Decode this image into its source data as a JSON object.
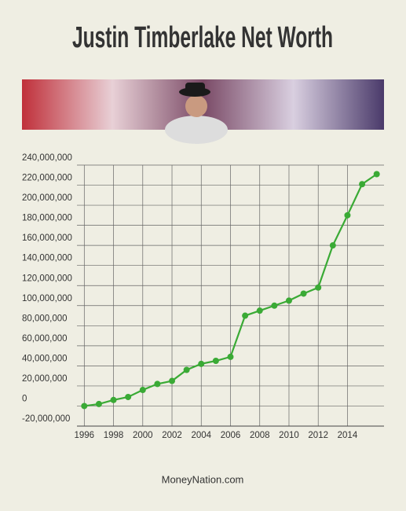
{
  "chart_data": {
    "type": "line",
    "title": "Justin Timberlake Net Worth",
    "source": "MoneyNation.com",
    "x": [
      1996,
      1997,
      1998,
      1999,
      2000,
      2001,
      2002,
      2003,
      2004,
      2005,
      2006,
      2007,
      2008,
      2009,
      2010,
      2011,
      2012,
      2013,
      2014,
      2015,
      2016
    ],
    "values": [
      0,
      2000000,
      6000000,
      9000000,
      16000000,
      22000000,
      25000000,
      36000000,
      42000000,
      45000000,
      49000000,
      90000000,
      95000000,
      100000000,
      105000000,
      112000000,
      118000000,
      160000000,
      190000000,
      221000000,
      231000000
    ],
    "color": "#3aaa35",
    "xlim": [
      1995.5,
      2016.5
    ],
    "xticks": [
      1996,
      1998,
      2000,
      2002,
      2004,
      2006,
      2008,
      2010,
      2012,
      2014
    ],
    "ylim": [
      -20000000,
      240000000
    ],
    "yticks": [
      {
        "value": -20000000,
        "label": "-20,000,000"
      },
      0,
      {
        "value": 20000000,
        "label": "20,000,000"
      },
      {
        "value": 40000000,
        "label": "40,000,000"
      },
      {
        "value": 60000000,
        "label": "60,000,000"
      },
      {
        "value": 80000000,
        "label": "80,000,000"
      },
      {
        "value": 100000000,
        "label": "100,000,000"
      },
      {
        "value": 120000000,
        "label": "120,000,000"
      },
      {
        "value": 140000000,
        "label": "140,000,000"
      },
      {
        "value": 160000000,
        "label": "160,000,000"
      },
      {
        "value": 180000000,
        "label": "180,000,000"
      },
      {
        "value": 200000000,
        "label": "200,000,000"
      },
      {
        "value": 220000000,
        "label": "220,000,000"
      },
      {
        "value": 240000000,
        "label": "240,000,000"
      }
    ],
    "grid": true
  }
}
